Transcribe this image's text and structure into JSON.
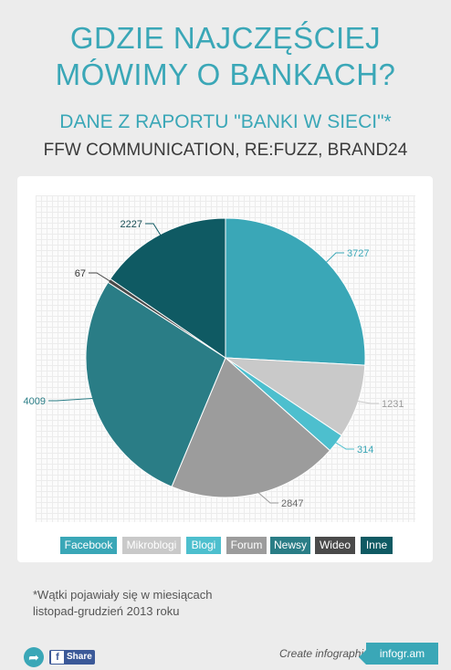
{
  "header": {
    "title_line1": "GDZIE NAJCZĘŚCIEJ",
    "title_line2": "MÓWIMY O BANKACH?",
    "subtitle": "DANE Z RAPORTU \"BANKI W SIECI\"*",
    "sources": "FFW COMMUNICATION, RE:FUZZ, BRAND24"
  },
  "chart_data": {
    "type": "pie",
    "categories": [
      "Facebook",
      "Mikroblogi",
      "Blogi",
      "Forum",
      "Newsy",
      "Wideo",
      "Inne"
    ],
    "values": [
      3727,
      1231,
      314,
      2847,
      4009,
      67,
      2227
    ],
    "colors": [
      "#3aa7b7",
      "#c9c9c9",
      "#4dbfce",
      "#9c9c9c",
      "#2a7d86",
      "#4a4a4a",
      "#0f5a63"
    ],
    "label_colors": [
      "#3aa7b7",
      "#9a9a9a",
      "#3aa7b7",
      "#666666",
      "#2a7d86",
      "#333333",
      "#1a4f56"
    ],
    "legend_position": "bottom"
  },
  "footnote": {
    "line1": "*Wątki pojawiały się w miesiącach",
    "line2": "listopad-grudzień 2013 roku"
  },
  "footer": {
    "share_label": "Share",
    "fb_letter": "f",
    "create_text": "Create infographics",
    "brand": "infogr.am"
  },
  "icons": {
    "share": "share-arrow-icon",
    "facebook": "facebook-icon"
  }
}
